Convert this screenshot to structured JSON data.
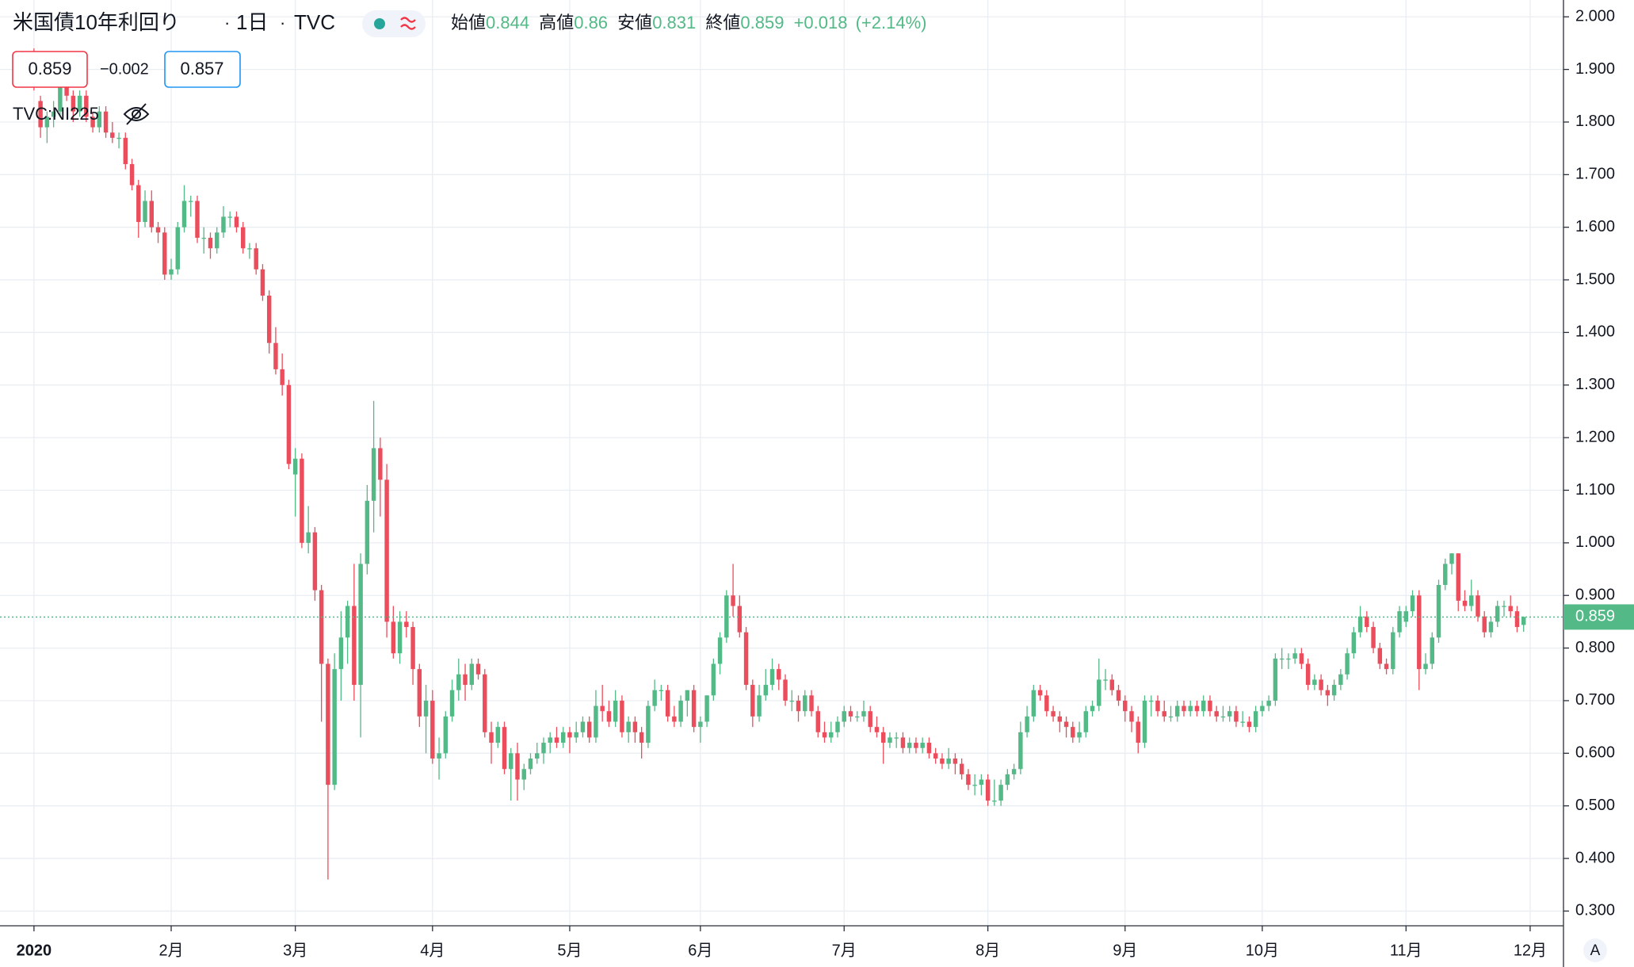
{
  "chart_data": {
    "type": "candlestick",
    "title": "米国債10年利回り",
    "interval": "1日",
    "source": "TVC",
    "legend": {
      "open_label": "始値",
      "high_label": "高値",
      "low_label": "安値",
      "close_label": "終値",
      "change": "+0.018",
      "change_percent": "(+2.14%)"
    },
    "bid": 0.859,
    "spread": "−0.002",
    "ask": 0.857,
    "overlay": "TVC:NI225",
    "scale_button": "A",
    "last_price": 0.859,
    "up_color": "#53b987",
    "down_color": "#eb4d5c",
    "grid": true,
    "xlim": [
      -5.2,
      234.1
    ],
    "xticks": [
      {
        "value": 0,
        "label": "2020"
      },
      {
        "value": 21,
        "label": "2月"
      },
      {
        "value": 40,
        "label": "3月"
      },
      {
        "value": 61,
        "label": "4月"
      },
      {
        "value": 82,
        "label": "5月"
      },
      {
        "value": 102,
        "label": "6月"
      },
      {
        "value": 124,
        "label": "7月"
      },
      {
        "value": 146,
        "label": "8月"
      },
      {
        "value": 167,
        "label": "9月"
      },
      {
        "value": 188,
        "label": "10月"
      },
      {
        "value": 210,
        "label": "11月"
      },
      {
        "value": 229,
        "label": "12月"
      }
    ],
    "ylim": [
      0.272,
      2.032
    ],
    "yticks": [
      {
        "value": 0.3,
        "label": "0.300"
      },
      {
        "value": 0.4,
        "label": "0.400"
      },
      {
        "value": 0.5,
        "label": "0.500"
      },
      {
        "value": 0.6,
        "label": "0.600"
      },
      {
        "value": 0.7,
        "label": "0.700"
      },
      {
        "value": 0.8,
        "label": "0.800"
      },
      {
        "value": 0.9,
        "label": "0.900"
      },
      {
        "value": 1.0,
        "label": "1.000"
      },
      {
        "value": 1.1,
        "label": "1.100"
      },
      {
        "value": 1.2,
        "label": "1.200"
      },
      {
        "value": 1.3,
        "label": "1.300"
      },
      {
        "value": 1.4,
        "label": "1.400"
      },
      {
        "value": 1.5,
        "label": "1.500"
      },
      {
        "value": 1.6,
        "label": "1.600"
      },
      {
        "value": 1.7,
        "label": "1.700"
      },
      {
        "value": 1.8,
        "label": "1.800"
      },
      {
        "value": 1.9,
        "label": "1.900"
      },
      {
        "value": 2.0,
        "label": "2.000"
      }
    ],
    "candles": [
      [
        1.92,
        1.94,
        1.86,
        1.88
      ],
      [
        1.84,
        1.85,
        1.77,
        1.79
      ],
      [
        1.79,
        1.82,
        1.76,
        1.81
      ],
      [
        1.81,
        1.84,
        1.79,
        1.82
      ],
      [
        1.82,
        1.88,
        1.81,
        1.87
      ],
      [
        1.87,
        1.89,
        1.84,
        1.85
      ],
      [
        1.85,
        1.86,
        1.8,
        1.82
      ],
      [
        1.82,
        1.86,
        1.81,
        1.85
      ],
      [
        1.85,
        1.86,
        1.8,
        1.81
      ],
      [
        1.81,
        1.82,
        1.78,
        1.79
      ],
      [
        1.79,
        1.83,
        1.78,
        1.82
      ],
      [
        1.82,
        1.83,
        1.77,
        1.78
      ],
      [
        1.78,
        1.8,
        1.76,
        1.77
      ],
      [
        1.77,
        1.78,
        1.75,
        1.77
      ],
      [
        1.77,
        1.78,
        1.71,
        1.72
      ],
      [
        1.72,
        1.73,
        1.67,
        1.68
      ],
      [
        1.68,
        1.69,
        1.58,
        1.61
      ],
      [
        1.61,
        1.67,
        1.6,
        1.65
      ],
      [
        1.65,
        1.67,
        1.59,
        1.6
      ],
      [
        1.6,
        1.61,
        1.57,
        1.59
      ],
      [
        1.59,
        1.6,
        1.5,
        1.51
      ],
      [
        1.51,
        1.54,
        1.5,
        1.52
      ],
      [
        1.52,
        1.61,
        1.51,
        1.6
      ],
      [
        1.6,
        1.68,
        1.59,
        1.65
      ],
      [
        1.65,
        1.66,
        1.62,
        1.65
      ],
      [
        1.65,
        1.66,
        1.57,
        1.58
      ],
      [
        1.58,
        1.6,
        1.55,
        1.58
      ],
      [
        1.58,
        1.59,
        1.54,
        1.56
      ],
      [
        1.56,
        1.6,
        1.55,
        1.59
      ],
      [
        1.59,
        1.64,
        1.58,
        1.62
      ],
      [
        1.62,
        1.63,
        1.6,
        1.62
      ],
      [
        1.62,
        1.63,
        1.59,
        1.6
      ],
      [
        1.6,
        1.61,
        1.55,
        1.56
      ],
      [
        1.56,
        1.57,
        1.54,
        1.56
      ],
      [
        1.56,
        1.57,
        1.51,
        1.52
      ],
      [
        1.52,
        1.53,
        1.46,
        1.47
      ],
      [
        1.47,
        1.48,
        1.36,
        1.38
      ],
      [
        1.38,
        1.41,
        1.32,
        1.33
      ],
      [
        1.33,
        1.36,
        1.28,
        1.3
      ],
      [
        1.3,
        1.31,
        1.14,
        1.15
      ],
      [
        1.13,
        1.18,
        1.05,
        1.16
      ],
      [
        1.16,
        1.17,
        0.99,
        1.0
      ],
      [
        1.0,
        1.07,
        0.98,
        1.02
      ],
      [
        1.02,
        1.03,
        0.89,
        0.91
      ],
      [
        0.91,
        0.92,
        0.66,
        0.77
      ],
      [
        0.77,
        0.78,
        0.36,
        0.54
      ],
      [
        0.54,
        0.79,
        0.53,
        0.76
      ],
      [
        0.76,
        0.87,
        0.7,
        0.82
      ],
      [
        0.82,
        0.89,
        0.77,
        0.88
      ],
      [
        0.88,
        0.96,
        0.7,
        0.73
      ],
      [
        0.73,
        0.98,
        0.63,
        0.96
      ],
      [
        0.96,
        1.11,
        0.94,
        1.08
      ],
      [
        1.08,
        1.27,
        1.02,
        1.18
      ],
      [
        1.18,
        1.2,
        1.05,
        1.12
      ],
      [
        1.12,
        1.15,
        0.82,
        0.85
      ],
      [
        0.85,
        0.88,
        0.78,
        0.79
      ],
      [
        0.79,
        0.87,
        0.77,
        0.85
      ],
      [
        0.85,
        0.87,
        0.82,
        0.84
      ],
      [
        0.84,
        0.85,
        0.73,
        0.76
      ],
      [
        0.76,
        0.77,
        0.65,
        0.67
      ],
      [
        0.67,
        0.73,
        0.6,
        0.7
      ],
      [
        0.7,
        0.72,
        0.58,
        0.59
      ],
      [
        0.59,
        0.63,
        0.55,
        0.6
      ],
      [
        0.6,
        0.68,
        0.59,
        0.67
      ],
      [
        0.67,
        0.74,
        0.66,
        0.72
      ],
      [
        0.72,
        0.78,
        0.7,
        0.75
      ],
      [
        0.75,
        0.77,
        0.7,
        0.73
      ],
      [
        0.73,
        0.78,
        0.72,
        0.77
      ],
      [
        0.77,
        0.78,
        0.74,
        0.75
      ],
      [
        0.75,
        0.76,
        0.63,
        0.64
      ],
      [
        0.64,
        0.66,
        0.58,
        0.62
      ],
      [
        0.62,
        0.66,
        0.61,
        0.65
      ],
      [
        0.65,
        0.66,
        0.56,
        0.57
      ],
      [
        0.57,
        0.61,
        0.51,
        0.6
      ],
      [
        0.6,
        0.62,
        0.51,
        0.55
      ],
      [
        0.55,
        0.58,
        0.53,
        0.57
      ],
      [
        0.57,
        0.6,
        0.56,
        0.59
      ],
      [
        0.59,
        0.62,
        0.58,
        0.6
      ],
      [
        0.6,
        0.63,
        0.58,
        0.62
      ],
      [
        0.62,
        0.64,
        0.6,
        0.63
      ],
      [
        0.63,
        0.65,
        0.61,
        0.62
      ],
      [
        0.62,
        0.65,
        0.61,
        0.64
      ],
      [
        0.64,
        0.65,
        0.6,
        0.63
      ],
      [
        0.63,
        0.66,
        0.62,
        0.64
      ],
      [
        0.64,
        0.67,
        0.63,
        0.66
      ],
      [
        0.66,
        0.67,
        0.62,
        0.63
      ],
      [
        0.63,
        0.72,
        0.62,
        0.69
      ],
      [
        0.69,
        0.73,
        0.66,
        0.68
      ],
      [
        0.68,
        0.7,
        0.65,
        0.66
      ],
      [
        0.66,
        0.72,
        0.65,
        0.7
      ],
      [
        0.7,
        0.71,
        0.63,
        0.64
      ],
      [
        0.64,
        0.67,
        0.62,
        0.66
      ],
      [
        0.66,
        0.67,
        0.62,
        0.64
      ],
      [
        0.64,
        0.65,
        0.59,
        0.62
      ],
      [
        0.62,
        0.7,
        0.61,
        0.69
      ],
      [
        0.69,
        0.74,
        0.68,
        0.72
      ],
      [
        0.72,
        0.73,
        0.7,
        0.72
      ],
      [
        0.72,
        0.73,
        0.66,
        0.67
      ],
      [
        0.67,
        0.69,
        0.65,
        0.66
      ],
      [
        0.66,
        0.71,
        0.65,
        0.7
      ],
      [
        0.7,
        0.72,
        0.67,
        0.72
      ],
      [
        0.72,
        0.73,
        0.64,
        0.65
      ],
      [
        0.65,
        0.67,
        0.62,
        0.66
      ],
      [
        0.66,
        0.71,
        0.65,
        0.71
      ],
      [
        0.71,
        0.78,
        0.7,
        0.77
      ],
      [
        0.77,
        0.83,
        0.75,
        0.82
      ],
      [
        0.82,
        0.91,
        0.81,
        0.9
      ],
      [
        0.9,
        0.96,
        0.86,
        0.88
      ],
      [
        0.88,
        0.9,
        0.82,
        0.83
      ],
      [
        0.83,
        0.84,
        0.72,
        0.73
      ],
      [
        0.73,
        0.74,
        0.65,
        0.67
      ],
      [
        0.67,
        0.73,
        0.66,
        0.71
      ],
      [
        0.71,
        0.76,
        0.7,
        0.73
      ],
      [
        0.73,
        0.78,
        0.72,
        0.76
      ],
      [
        0.76,
        0.77,
        0.72,
        0.74
      ],
      [
        0.74,
        0.75,
        0.69,
        0.7
      ],
      [
        0.7,
        0.72,
        0.68,
        0.7
      ],
      [
        0.7,
        0.71,
        0.66,
        0.68
      ],
      [
        0.68,
        0.72,
        0.67,
        0.71
      ],
      [
        0.71,
        0.72,
        0.67,
        0.68
      ],
      [
        0.68,
        0.69,
        0.63,
        0.64
      ],
      [
        0.64,
        0.66,
        0.62,
        0.63
      ],
      [
        0.63,
        0.66,
        0.62,
        0.64
      ],
      [
        0.64,
        0.67,
        0.63,
        0.66
      ],
      [
        0.66,
        0.69,
        0.65,
        0.68
      ],
      [
        0.68,
        0.69,
        0.66,
        0.67
      ],
      [
        0.67,
        0.68,
        0.66,
        0.67
      ],
      [
        0.67,
        0.7,
        0.66,
        0.68
      ],
      [
        0.68,
        0.69,
        0.64,
        0.65
      ],
      [
        0.65,
        0.67,
        0.63,
        0.64
      ],
      [
        0.64,
        0.65,
        0.58,
        0.62
      ],
      [
        0.62,
        0.64,
        0.61,
        0.63
      ],
      [
        0.63,
        0.64,
        0.61,
        0.63
      ],
      [
        0.63,
        0.64,
        0.6,
        0.61
      ],
      [
        0.61,
        0.63,
        0.6,
        0.62
      ],
      [
        0.62,
        0.63,
        0.6,
        0.61
      ],
      [
        0.61,
        0.63,
        0.6,
        0.62
      ],
      [
        0.62,
        0.63,
        0.59,
        0.6
      ],
      [
        0.6,
        0.61,
        0.58,
        0.59
      ],
      [
        0.59,
        0.6,
        0.57,
        0.58
      ],
      [
        0.58,
        0.61,
        0.57,
        0.59
      ],
      [
        0.59,
        0.6,
        0.56,
        0.58
      ],
      [
        0.58,
        0.59,
        0.55,
        0.56
      ],
      [
        0.56,
        0.57,
        0.53,
        0.54
      ],
      [
        0.54,
        0.56,
        0.52,
        0.54
      ],
      [
        0.54,
        0.56,
        0.52,
        0.55
      ],
      [
        0.55,
        0.56,
        0.5,
        0.51
      ],
      [
        0.51,
        0.55,
        0.5,
        0.51
      ],
      [
        0.51,
        0.55,
        0.5,
        0.54
      ],
      [
        0.54,
        0.57,
        0.53,
        0.56
      ],
      [
        0.56,
        0.58,
        0.55,
        0.57
      ],
      [
        0.57,
        0.66,
        0.56,
        0.64
      ],
      [
        0.64,
        0.69,
        0.63,
        0.67
      ],
      [
        0.67,
        0.73,
        0.66,
        0.72
      ],
      [
        0.72,
        0.73,
        0.7,
        0.71
      ],
      [
        0.71,
        0.72,
        0.67,
        0.68
      ],
      [
        0.68,
        0.69,
        0.66,
        0.67
      ],
      [
        0.67,
        0.68,
        0.64,
        0.66
      ],
      [
        0.66,
        0.67,
        0.63,
        0.65
      ],
      [
        0.65,
        0.66,
        0.62,
        0.63
      ],
      [
        0.63,
        0.66,
        0.62,
        0.64
      ],
      [
        0.64,
        0.69,
        0.63,
        0.68
      ],
      [
        0.68,
        0.7,
        0.67,
        0.69
      ],
      [
        0.69,
        0.78,
        0.68,
        0.74
      ],
      [
        0.74,
        0.76,
        0.72,
        0.74
      ],
      [
        0.74,
        0.75,
        0.71,
        0.72
      ],
      [
        0.72,
        0.73,
        0.69,
        0.7
      ],
      [
        0.7,
        0.71,
        0.66,
        0.68
      ],
      [
        0.68,
        0.69,
        0.64,
        0.66
      ],
      [
        0.66,
        0.67,
        0.6,
        0.62
      ],
      [
        0.62,
        0.71,
        0.61,
        0.7
      ],
      [
        0.7,
        0.71,
        0.67,
        0.7
      ],
      [
        0.7,
        0.71,
        0.67,
        0.68
      ],
      [
        0.68,
        0.7,
        0.66,
        0.67
      ],
      [
        0.67,
        0.69,
        0.66,
        0.67
      ],
      [
        0.67,
        0.7,
        0.66,
        0.69
      ],
      [
        0.69,
        0.7,
        0.67,
        0.68
      ],
      [
        0.68,
        0.7,
        0.67,
        0.69
      ],
      [
        0.69,
        0.7,
        0.67,
        0.68
      ],
      [
        0.68,
        0.71,
        0.67,
        0.7
      ],
      [
        0.7,
        0.71,
        0.67,
        0.68
      ],
      [
        0.68,
        0.69,
        0.66,
        0.67
      ],
      [
        0.67,
        0.69,
        0.66,
        0.67
      ],
      [
        0.67,
        0.69,
        0.66,
        0.68
      ],
      [
        0.68,
        0.69,
        0.65,
        0.66
      ],
      [
        0.66,
        0.68,
        0.65,
        0.66
      ],
      [
        0.66,
        0.67,
        0.64,
        0.65
      ],
      [
        0.65,
        0.69,
        0.64,
        0.68
      ],
      [
        0.68,
        0.7,
        0.67,
        0.69
      ],
      [
        0.69,
        0.71,
        0.68,
        0.7
      ],
      [
        0.7,
        0.79,
        0.69,
        0.78
      ],
      [
        0.78,
        0.8,
        0.76,
        0.78
      ],
      [
        0.78,
        0.79,
        0.76,
        0.78
      ],
      [
        0.78,
        0.8,
        0.77,
        0.79
      ],
      [
        0.79,
        0.8,
        0.76,
        0.77
      ],
      [
        0.77,
        0.78,
        0.72,
        0.73
      ],
      [
        0.73,
        0.75,
        0.72,
        0.74
      ],
      [
        0.74,
        0.75,
        0.71,
        0.72
      ],
      [
        0.72,
        0.73,
        0.69,
        0.71
      ],
      [
        0.71,
        0.74,
        0.7,
        0.73
      ],
      [
        0.73,
        0.76,
        0.72,
        0.75
      ],
      [
        0.75,
        0.8,
        0.74,
        0.79
      ],
      [
        0.79,
        0.84,
        0.78,
        0.83
      ],
      [
        0.83,
        0.88,
        0.82,
        0.86
      ],
      [
        0.86,
        0.87,
        0.83,
        0.84
      ],
      [
        0.84,
        0.85,
        0.79,
        0.8
      ],
      [
        0.8,
        0.81,
        0.76,
        0.77
      ],
      [
        0.77,
        0.78,
        0.75,
        0.76
      ],
      [
        0.76,
        0.84,
        0.75,
        0.83
      ],
      [
        0.83,
        0.88,
        0.82,
        0.87
      ],
      [
        0.85,
        0.88,
        0.84,
        0.87
      ],
      [
        0.87,
        0.91,
        0.86,
        0.9
      ],
      [
        0.9,
        0.91,
        0.72,
        0.76
      ],
      [
        0.76,
        0.79,
        0.75,
        0.77
      ],
      [
        0.77,
        0.83,
        0.76,
        0.82
      ],
      [
        0.82,
        0.93,
        0.81,
        0.92
      ],
      [
        0.92,
        0.97,
        0.91,
        0.96
      ],
      [
        0.96,
        0.98,
        0.94,
        0.98
      ],
      [
        0.98,
        0.98,
        0.87,
        0.89
      ],
      [
        0.89,
        0.91,
        0.87,
        0.88
      ],
      [
        0.88,
        0.93,
        0.87,
        0.9
      ],
      [
        0.9,
        0.91,
        0.85,
        0.86
      ],
      [
        0.86,
        0.87,
        0.82,
        0.83
      ],
      [
        0.83,
        0.86,
        0.82,
        0.85
      ],
      [
        0.85,
        0.89,
        0.84,
        0.88
      ],
      [
        0.88,
        0.89,
        0.86,
        0.88
      ],
      [
        0.88,
        0.9,
        0.86,
        0.87
      ],
      [
        0.87,
        0.88,
        0.83,
        0.84
      ],
      [
        0.844,
        0.86,
        0.831,
        0.859
      ]
    ]
  }
}
